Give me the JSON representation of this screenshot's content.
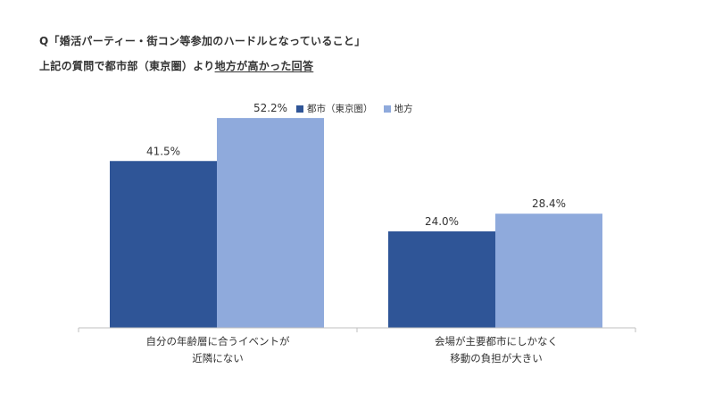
{
  "title": "Q「婚活パーティー・街コン等参加のハードルとなっていること」",
  "subtitle": {
    "prefix": "上記の質問で都市部（東京圏）より",
    "highlight": "地方が高かった回答"
  },
  "colors": {
    "city": "#2f5597",
    "region": "#8faadc",
    "axis": "#bfbfbf",
    "text": "#333333"
  },
  "chart_data": {
    "type": "bar",
    "categories": [
      [
        "自分の年齢層に合うイベントが",
        "近隣にない"
      ],
      [
        "会場が主要都市にしかなく",
        "移動の負担が大きい"
      ]
    ],
    "series": [
      {
        "name": "都市（東京圏）",
        "values": [
          41.5,
          24.0
        ],
        "labels": [
          "41.5%",
          "24.0%"
        ]
      },
      {
        "name": "地方",
        "values": [
          52.2,
          28.4
        ],
        "labels": [
          "52.2%",
          "28.4%"
        ]
      }
    ],
    "ylim": [
      0,
      60
    ],
    "grid": false,
    "legend_position": "top-center",
    "title": "",
    "xlabel": "",
    "ylabel": ""
  }
}
